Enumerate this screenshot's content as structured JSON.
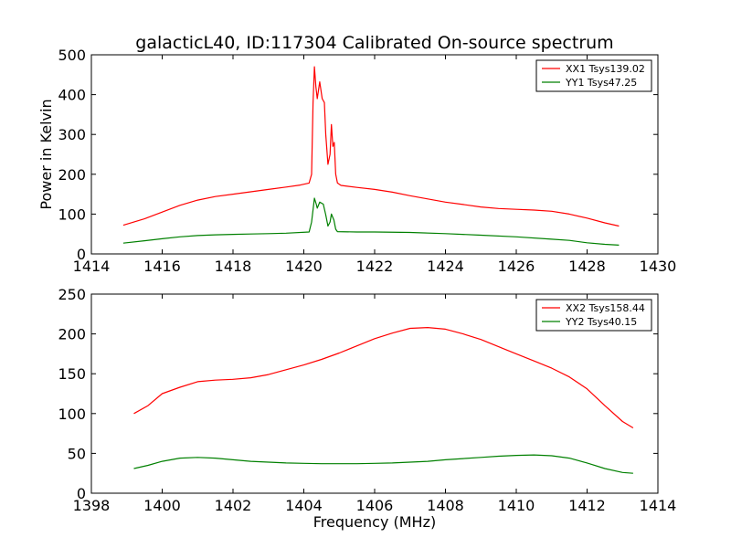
{
  "title": "galacticL40, ID:117304 Calibrated On-source spectrum",
  "chart_data": [
    {
      "type": "line",
      "title": "galacticL40, ID:117304 Calibrated On-source spectrum",
      "xlabel": "",
      "ylabel": "Power in Kelvin",
      "xlim": [
        1414,
        1430
      ],
      "ylim": [
        0,
        500
      ],
      "xticks": [
        "1414",
        "1416",
        "1418",
        "1420",
        "1422",
        "1424",
        "1426",
        "1428",
        "1430"
      ],
      "yticks": [
        "0",
        "100",
        "200",
        "300",
        "400",
        "500"
      ],
      "grid": false,
      "legend_position": "top-right",
      "series": [
        {
          "name": "XX1 Tsys139.02",
          "color": "#ff0000",
          "points": [
            [
              1414.9,
              72
            ],
            [
              1415.5,
              88
            ],
            [
              1416,
              105
            ],
            [
              1416.5,
              122
            ],
            [
              1417,
              135
            ],
            [
              1417.5,
              144
            ],
            [
              1418,
              150
            ],
            [
              1418.5,
              156
            ],
            [
              1419,
              162
            ],
            [
              1419.5,
              168
            ],
            [
              1419.9,
              173
            ],
            [
              1420.15,
              178
            ],
            [
              1420.22,
              200
            ],
            [
              1420.26,
              380
            ],
            [
              1420.3,
              470
            ],
            [
              1420.34,
              420
            ],
            [
              1420.38,
              390
            ],
            [
              1420.45,
              432
            ],
            [
              1420.52,
              390
            ],
            [
              1420.58,
              380
            ],
            [
              1420.62,
              300
            ],
            [
              1420.68,
              225
            ],
            [
              1420.74,
              250
            ],
            [
              1420.78,
              325
            ],
            [
              1420.82,
              270
            ],
            [
              1420.86,
              280
            ],
            [
              1420.9,
              200
            ],
            [
              1420.95,
              178
            ],
            [
              1421.05,
              172
            ],
            [
              1421.5,
              167
            ],
            [
              1422,
              162
            ],
            [
              1422.5,
              155
            ],
            [
              1423,
              146
            ],
            [
              1423.5,
              138
            ],
            [
              1424,
              130
            ],
            [
              1424.5,
              124
            ],
            [
              1425,
              118
            ],
            [
              1425.5,
              114
            ],
            [
              1426,
              112
            ],
            [
              1426.5,
              110
            ],
            [
              1427,
              107
            ],
            [
              1427.5,
              100
            ],
            [
              1428,
              90
            ],
            [
              1428.5,
              78
            ],
            [
              1428.9,
              70
            ]
          ]
        },
        {
          "name": "YY1 Tsys47.25",
          "color": "#008000",
          "points": [
            [
              1414.9,
              27
            ],
            [
              1415.5,
              33
            ],
            [
              1416,
              38
            ],
            [
              1416.5,
              43
            ],
            [
              1417,
              46
            ],
            [
              1417.5,
              48
            ],
            [
              1418,
              49
            ],
            [
              1418.5,
              50
            ],
            [
              1419,
              51
            ],
            [
              1419.5,
              52
            ],
            [
              1420.15,
              55
            ],
            [
              1420.22,
              80
            ],
            [
              1420.3,
              140
            ],
            [
              1420.35,
              125
            ],
            [
              1420.38,
              115
            ],
            [
              1420.45,
              130
            ],
            [
              1420.55,
              125
            ],
            [
              1420.62,
              98
            ],
            [
              1420.68,
              70
            ],
            [
              1420.74,
              80
            ],
            [
              1420.78,
              100
            ],
            [
              1420.85,
              85
            ],
            [
              1420.9,
              62
            ],
            [
              1420.95,
              56
            ],
            [
              1421.5,
              55
            ],
            [
              1422,
              55
            ],
            [
              1423,
              54
            ],
            [
              1424,
              51
            ],
            [
              1425,
              47
            ],
            [
              1426,
              43
            ],
            [
              1427,
              37
            ],
            [
              1427.5,
              34
            ],
            [
              1428,
              28
            ],
            [
              1428.5,
              24
            ],
            [
              1428.9,
              22
            ]
          ]
        }
      ]
    },
    {
      "type": "line",
      "title": "",
      "xlabel": "Frequency (MHz)",
      "ylabel": "",
      "xlim": [
        1398,
        1414
      ],
      "ylim": [
        0,
        250
      ],
      "xticks": [
        "1398",
        "1400",
        "1402",
        "1404",
        "1406",
        "1408",
        "1410",
        "1412",
        "1414"
      ],
      "yticks": [
        "0",
        "50",
        "100",
        "150",
        "200",
        "250"
      ],
      "grid": false,
      "legend_position": "top-right",
      "series": [
        {
          "name": "XX2 Tsys158.44",
          "color": "#ff0000",
          "points": [
            [
              1399.2,
              100
            ],
            [
              1399.6,
              110
            ],
            [
              1400,
              125
            ],
            [
              1400.5,
              133
            ],
            [
              1401,
              140
            ],
            [
              1401.5,
              142
            ],
            [
              1402,
              143
            ],
            [
              1402.5,
              145
            ],
            [
              1403,
              149
            ],
            [
              1403.5,
              155
            ],
            [
              1404,
              161
            ],
            [
              1404.5,
              168
            ],
            [
              1405,
              176
            ],
            [
              1405.5,
              185
            ],
            [
              1406,
              194
            ],
            [
              1406.5,
              201
            ],
            [
              1407,
              207
            ],
            [
              1407.5,
              208
            ],
            [
              1408,
              206
            ],
            [
              1408.5,
              200
            ],
            [
              1409,
              193
            ],
            [
              1409.5,
              184
            ],
            [
              1410,
              175
            ],
            [
              1410.5,
              166
            ],
            [
              1411,
              157
            ],
            [
              1411.5,
              146
            ],
            [
              1412,
              131
            ],
            [
              1412.5,
              110
            ],
            [
              1413,
              90
            ],
            [
              1413.3,
              82
            ]
          ]
        },
        {
          "name": "YY2 Tsys40.15",
          "color": "#008000",
          "points": [
            [
              1399.2,
              31
            ],
            [
              1399.6,
              35
            ],
            [
              1400,
              40
            ],
            [
              1400.5,
              44
            ],
            [
              1401,
              45
            ],
            [
              1401.5,
              44
            ],
            [
              1402,
              42
            ],
            [
              1402.5,
              40
            ],
            [
              1403,
              39
            ],
            [
              1403.5,
              38
            ],
            [
              1404,
              37.5
            ],
            [
              1404.5,
              37
            ],
            [
              1405,
              37
            ],
            [
              1405.5,
              37
            ],
            [
              1406,
              37.5
            ],
            [
              1406.5,
              38
            ],
            [
              1407,
              39
            ],
            [
              1407.5,
              40
            ],
            [
              1408,
              42
            ],
            [
              1408.5,
              43.5
            ],
            [
              1409,
              45
            ],
            [
              1409.5,
              46.5
            ],
            [
              1410,
              47.5
            ],
            [
              1410.5,
              48
            ],
            [
              1411,
              47
            ],
            [
              1411.5,
              44
            ],
            [
              1412,
              38
            ],
            [
              1412.5,
              31
            ],
            [
              1413,
              26
            ],
            [
              1413.3,
              25
            ]
          ]
        }
      ]
    }
  ]
}
